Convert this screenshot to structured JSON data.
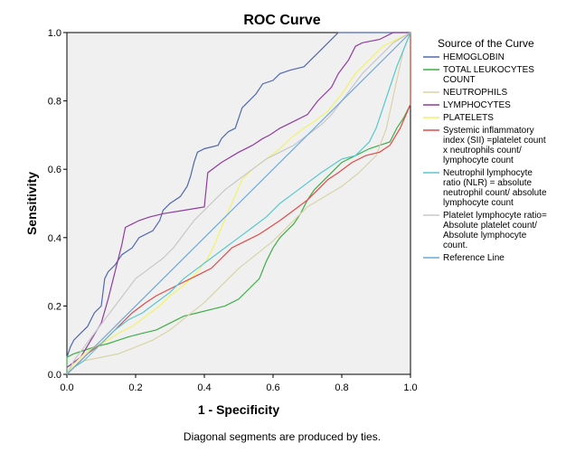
{
  "chart_data": {
    "type": "line",
    "title": "ROC Curve",
    "xlabel": "1 - Specificity",
    "ylabel": "Sensitivity",
    "xlim": [
      0,
      1
    ],
    "ylim": [
      0,
      1
    ],
    "xticks": [
      "0.0",
      "0.2",
      "0.4",
      "0.6",
      "0.8",
      "1.0"
    ],
    "yticks": [
      "0.0",
      "0.2",
      "0.4",
      "0.6",
      "0.8",
      "1.0"
    ],
    "legend_title": "Source of the Curve",
    "legend_position": "right",
    "footnote": "Diagonal segments are produced by ties.",
    "series": [
      {
        "name": "HEMOGLOBIN",
        "label_lines": [
          "HEMOGLOBIN"
        ],
        "color": "#5068b0",
        "points": [
          [
            0,
            0.05
          ],
          [
            0.01,
            0.08
          ],
          [
            0.02,
            0.1
          ],
          [
            0.04,
            0.12
          ],
          [
            0.06,
            0.14
          ],
          [
            0.07,
            0.16
          ],
          [
            0.08,
            0.18
          ],
          [
            0.1,
            0.2
          ],
          [
            0.11,
            0.28
          ],
          [
            0.12,
            0.3
          ],
          [
            0.14,
            0.32
          ],
          [
            0.16,
            0.35
          ],
          [
            0.19,
            0.37
          ],
          [
            0.21,
            0.4
          ],
          [
            0.25,
            0.42
          ],
          [
            0.27,
            0.45
          ],
          [
            0.28,
            0.48
          ],
          [
            0.3,
            0.5
          ],
          [
            0.33,
            0.52
          ],
          [
            0.35,
            0.55
          ],
          [
            0.36,
            0.58
          ],
          [
            0.37,
            0.62
          ],
          [
            0.38,
            0.65
          ],
          [
            0.4,
            0.66
          ],
          [
            0.44,
            0.67
          ],
          [
            0.45,
            0.69
          ],
          [
            0.47,
            0.71
          ],
          [
            0.49,
            0.72
          ],
          [
            0.51,
            0.78
          ],
          [
            0.52,
            0.79
          ],
          [
            0.55,
            0.82
          ],
          [
            0.57,
            0.85
          ],
          [
            0.6,
            0.86
          ],
          [
            0.62,
            0.88
          ],
          [
            0.65,
            0.89
          ],
          [
            0.69,
            0.9
          ],
          [
            0.71,
            0.92
          ],
          [
            0.74,
            0.95
          ],
          [
            0.76,
            0.97
          ],
          [
            0.79,
            1.0
          ],
          [
            1.0,
            1.0
          ]
        ]
      },
      {
        "name": "TOTAL LEUKOCYTES COUNT",
        "label_lines": [
          "TOTAL LEUKOCYTES",
          "COUNT"
        ],
        "color": "#3fae49",
        "points": [
          [
            0,
            0
          ],
          [
            0,
            0.05
          ],
          [
            0.02,
            0.06
          ],
          [
            0.05,
            0.07
          ],
          [
            0.08,
            0.08
          ],
          [
            0.12,
            0.09
          ],
          [
            0.15,
            0.1
          ],
          [
            0.18,
            0.11
          ],
          [
            0.22,
            0.12
          ],
          [
            0.26,
            0.13
          ],
          [
            0.3,
            0.15
          ],
          [
            0.34,
            0.17
          ],
          [
            0.38,
            0.18
          ],
          [
            0.42,
            0.19
          ],
          [
            0.46,
            0.2
          ],
          [
            0.5,
            0.22
          ],
          [
            0.53,
            0.25
          ],
          [
            0.56,
            0.28
          ],
          [
            0.58,
            0.33
          ],
          [
            0.6,
            0.37
          ],
          [
            0.62,
            0.4
          ],
          [
            0.64,
            0.42
          ],
          [
            0.66,
            0.44
          ],
          [
            0.68,
            0.47
          ],
          [
            0.7,
            0.51
          ],
          [
            0.72,
            0.54
          ],
          [
            0.74,
            0.56
          ],
          [
            0.76,
            0.58
          ],
          [
            0.78,
            0.6
          ],
          [
            0.8,
            0.62
          ],
          [
            0.84,
            0.64
          ],
          [
            0.88,
            0.66
          ],
          [
            0.91,
            0.67
          ],
          [
            0.94,
            0.68
          ],
          [
            0.96,
            0.72
          ],
          [
            0.98,
            0.75
          ],
          [
            1.0,
            0.79
          ],
          [
            1.0,
            1.0
          ]
        ]
      },
      {
        "name": "NEUTROPHILS",
        "label_lines": [
          "NEUTROPHILS"
        ],
        "color": "#d8d4a8",
        "points": [
          [
            0,
            0
          ],
          [
            0.02,
            0.02
          ],
          [
            0.05,
            0.04
          ],
          [
            0.1,
            0.05
          ],
          [
            0.15,
            0.06
          ],
          [
            0.2,
            0.08
          ],
          [
            0.25,
            0.1
          ],
          [
            0.3,
            0.13
          ],
          [
            0.35,
            0.17
          ],
          [
            0.4,
            0.21
          ],
          [
            0.45,
            0.26
          ],
          [
            0.5,
            0.31
          ],
          [
            0.55,
            0.35
          ],
          [
            0.6,
            0.39
          ],
          [
            0.65,
            0.44
          ],
          [
            0.7,
            0.49
          ],
          [
            0.75,
            0.52
          ],
          [
            0.8,
            0.55
          ],
          [
            0.85,
            0.59
          ],
          [
            0.9,
            0.64
          ],
          [
            0.93,
            0.72
          ],
          [
            0.96,
            0.86
          ],
          [
            0.98,
            0.95
          ],
          [
            1.0,
            1.0
          ]
        ]
      },
      {
        "name": "LYMPHOCYTES",
        "label_lines": [
          "LYMPHOCYTES"
        ],
        "color": "#8e3ca0",
        "points": [
          [
            0,
            0.02
          ],
          [
            0.04,
            0.05
          ],
          [
            0.07,
            0.1
          ],
          [
            0.1,
            0.15
          ],
          [
            0.12,
            0.22
          ],
          [
            0.14,
            0.3
          ],
          [
            0.16,
            0.38
          ],
          [
            0.17,
            0.43
          ],
          [
            0.19,
            0.44
          ],
          [
            0.21,
            0.45
          ],
          [
            0.24,
            0.46
          ],
          [
            0.28,
            0.47
          ],
          [
            0.34,
            0.48
          ],
          [
            0.4,
            0.49
          ],
          [
            0.41,
            0.59
          ],
          [
            0.45,
            0.62
          ],
          [
            0.5,
            0.65
          ],
          [
            0.54,
            0.67
          ],
          [
            0.57,
            0.69
          ],
          [
            0.59,
            0.7
          ],
          [
            0.62,
            0.72
          ],
          [
            0.66,
            0.74
          ],
          [
            0.7,
            0.76
          ],
          [
            0.73,
            0.8
          ],
          [
            0.77,
            0.84
          ],
          [
            0.79,
            0.88
          ],
          [
            0.82,
            0.92
          ],
          [
            0.84,
            0.96
          ],
          [
            0.86,
            0.97
          ],
          [
            0.91,
            0.98
          ],
          [
            0.95,
            1.0
          ],
          [
            1.0,
            1.0
          ]
        ]
      },
      {
        "name": "PLATELETS",
        "label_lines": [
          "PLATELETS"
        ],
        "color": "#f2f26a",
        "points": [
          [
            0,
            0
          ],
          [
            0.02,
            0.03
          ],
          [
            0.05,
            0.06
          ],
          [
            0.08,
            0.08
          ],
          [
            0.12,
            0.1
          ],
          [
            0.15,
            0.12
          ],
          [
            0.19,
            0.14
          ],
          [
            0.23,
            0.17
          ],
          [
            0.27,
            0.2
          ],
          [
            0.3,
            0.23
          ],
          [
            0.34,
            0.26
          ],
          [
            0.38,
            0.3
          ],
          [
            0.41,
            0.34
          ],
          [
            0.43,
            0.38
          ],
          [
            0.45,
            0.43
          ],
          [
            0.48,
            0.5
          ],
          [
            0.51,
            0.57
          ],
          [
            0.54,
            0.6
          ],
          [
            0.58,
            0.63
          ],
          [
            0.62,
            0.66
          ],
          [
            0.65,
            0.69
          ],
          [
            0.69,
            0.72
          ],
          [
            0.72,
            0.74
          ],
          [
            0.76,
            0.77
          ],
          [
            0.8,
            0.82
          ],
          [
            0.84,
            0.88
          ],
          [
            0.88,
            0.92
          ],
          [
            0.92,
            0.96
          ],
          [
            0.96,
            0.98
          ],
          [
            1.0,
            1.0
          ]
        ]
      },
      {
        "name": "Systemic inflammatory index (SII) =platelet count x neutrophils count/ lymphocyte count",
        "label_lines": [
          "Systemic inflammatory",
          "index (SII) =platelet count",
          "x neutrophils count/",
          "lymphocyte count"
        ],
        "color": "#e24a4a",
        "points": [
          [
            0,
            0
          ],
          [
            0.03,
            0.03
          ],
          [
            0.06,
            0.06
          ],
          [
            0.1,
            0.09
          ],
          [
            0.13,
            0.12
          ],
          [
            0.16,
            0.15
          ],
          [
            0.19,
            0.18
          ],
          [
            0.23,
            0.21
          ],
          [
            0.26,
            0.23
          ],
          [
            0.3,
            0.25
          ],
          [
            0.34,
            0.27
          ],
          [
            0.38,
            0.29
          ],
          [
            0.42,
            0.31
          ],
          [
            0.45,
            0.34
          ],
          [
            0.48,
            0.37
          ],
          [
            0.52,
            0.39
          ],
          [
            0.56,
            0.41
          ],
          [
            0.59,
            0.43
          ],
          [
            0.62,
            0.45
          ],
          [
            0.66,
            0.48
          ],
          [
            0.7,
            0.51
          ],
          [
            0.73,
            0.54
          ],
          [
            0.76,
            0.57
          ],
          [
            0.79,
            0.59
          ],
          [
            0.83,
            0.62
          ],
          [
            0.87,
            0.64
          ],
          [
            0.91,
            0.65
          ],
          [
            0.94,
            0.67
          ],
          [
            0.97,
            0.72
          ],
          [
            1.0,
            0.79
          ],
          [
            1.0,
            1.0
          ]
        ]
      },
      {
        "name": "Neutrophil lymphocyte ratio (NLR) = absolute neutrophil count/ absolute lymphocyte count",
        "label_lines": [
          "Neutrophil lymphocyte",
          "ratio (NLR) = absolute",
          "neutrophil count/ absolute",
          "lymphocyte count"
        ],
        "color": "#56c8cc",
        "points": [
          [
            0,
            0
          ],
          [
            0.02,
            0.02
          ],
          [
            0.05,
            0.04
          ],
          [
            0.08,
            0.07
          ],
          [
            0.11,
            0.1
          ],
          [
            0.14,
            0.13
          ],
          [
            0.18,
            0.16
          ],
          [
            0.22,
            0.18
          ],
          [
            0.26,
            0.21
          ],
          [
            0.3,
            0.24
          ],
          [
            0.34,
            0.28
          ],
          [
            0.38,
            0.31
          ],
          [
            0.42,
            0.34
          ],
          [
            0.46,
            0.37
          ],
          [
            0.5,
            0.4
          ],
          [
            0.54,
            0.43
          ],
          [
            0.58,
            0.46
          ],
          [
            0.62,
            0.5
          ],
          [
            0.66,
            0.53
          ],
          [
            0.7,
            0.56
          ],
          [
            0.74,
            0.59
          ],
          [
            0.77,
            0.61
          ],
          [
            0.8,
            0.63
          ],
          [
            0.84,
            0.64
          ],
          [
            0.86,
            0.66
          ],
          [
            0.88,
            0.68
          ],
          [
            0.9,
            0.72
          ],
          [
            0.92,
            0.78
          ],
          [
            0.94,
            0.84
          ],
          [
            0.96,
            0.9
          ],
          [
            0.98,
            0.95
          ],
          [
            1.0,
            1.0
          ]
        ]
      },
      {
        "name": "Platelet lymphocyte ratio= Absolute platelet count/ Absolute lymphocyte count.",
        "label_lines": [
          "Platelet lymphocyte ratio=",
          "Absolute platelet count/",
          "Absolute lymphocyte",
          "count."
        ],
        "color": "#c8c8c8",
        "points": [
          [
            0,
            0
          ],
          [
            0.02,
            0.04
          ],
          [
            0.05,
            0.08
          ],
          [
            0.08,
            0.12
          ],
          [
            0.11,
            0.16
          ],
          [
            0.14,
            0.2
          ],
          [
            0.17,
            0.24
          ],
          [
            0.2,
            0.28
          ],
          [
            0.24,
            0.31
          ],
          [
            0.28,
            0.34
          ],
          [
            0.31,
            0.37
          ],
          [
            0.34,
            0.41
          ],
          [
            0.37,
            0.45
          ],
          [
            0.4,
            0.48
          ],
          [
            0.43,
            0.51
          ],
          [
            0.46,
            0.54
          ],
          [
            0.5,
            0.57
          ],
          [
            0.54,
            0.6
          ],
          [
            0.58,
            0.63
          ],
          [
            0.62,
            0.65
          ],
          [
            0.66,
            0.67
          ],
          [
            0.7,
            0.7
          ],
          [
            0.74,
            0.73
          ],
          [
            0.77,
            0.76
          ],
          [
            0.8,
            0.8
          ],
          [
            0.83,
            0.84
          ],
          [
            0.86,
            0.88
          ],
          [
            0.89,
            0.91
          ],
          [
            0.92,
            0.94
          ],
          [
            0.95,
            0.97
          ],
          [
            1.0,
            1.0
          ]
        ]
      },
      {
        "name": "Reference Line",
        "label_lines": [
          "Reference Line"
        ],
        "color": "#6fa8dc",
        "points": [
          [
            0,
            0
          ],
          [
            1,
            1
          ]
        ]
      }
    ]
  }
}
